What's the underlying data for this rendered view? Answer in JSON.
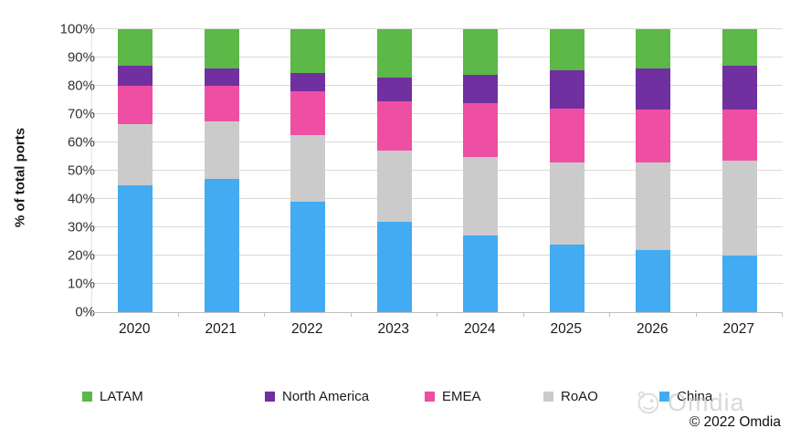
{
  "chart_data": {
    "type": "bar",
    "variant": "stacked-100-percent-column",
    "title": "",
    "ylabel": "% of total ports",
    "xlabel": "",
    "ylim": [
      0,
      100
    ],
    "ytick_labels": [
      "0%",
      "10%",
      "20%",
      "30%",
      "40%",
      "50%",
      "60%",
      "70%",
      "80%",
      "90%",
      "100%"
    ],
    "grid": "horizontal",
    "legend_position": "bottom",
    "categories": [
      "2020",
      "2021",
      "2022",
      "2023",
      "2024",
      "2025",
      "2026",
      "2027"
    ],
    "series": [
      {
        "name": "China",
        "color": "#43ABF2",
        "values": [
          45,
          47,
          39,
          32,
          27,
          24,
          22,
          20
        ]
      },
      {
        "name": "RoAO",
        "color": "#CBCBCB",
        "values": [
          21.5,
          20.5,
          23.5,
          25,
          28,
          29,
          31,
          33.5
        ]
      },
      {
        "name": "EMEA",
        "color": "#EE4FA3",
        "values": [
          13.5,
          12.5,
          15.5,
          17.5,
          19,
          19,
          18.5,
          18
        ]
      },
      {
        "name": "North America",
        "color": "#7030A0",
        "values": [
          7,
          6,
          6.5,
          8.5,
          10,
          13.5,
          14.5,
          15.5
        ]
      },
      {
        "name": "LATAM",
        "color": "#5CB847",
        "values": [
          13,
          14,
          15.5,
          17,
          16,
          14.5,
          14,
          13
        ]
      }
    ],
    "legend_order": [
      "LATAM",
      "North America",
      "EMEA",
      "RoAO",
      "China"
    ]
  },
  "footer": {
    "watermark": "Omdia",
    "copyright": "© 2022 Omdia"
  }
}
